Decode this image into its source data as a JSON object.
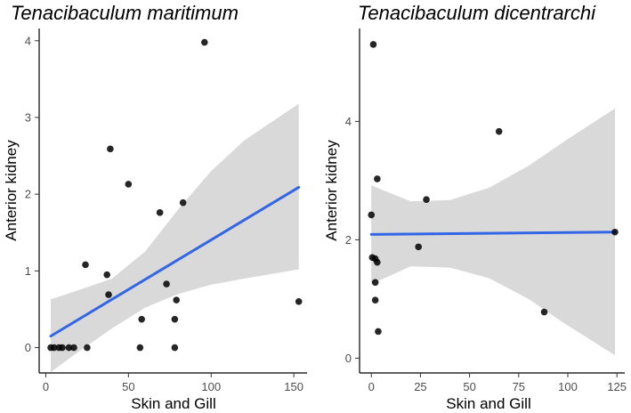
{
  "chart_data": [
    {
      "type": "scatter",
      "title": "Tenacibaculum maritimum",
      "xlabel": "Skin and Gill",
      "ylabel": "Anterior kidney",
      "xlim": [
        -4,
        158
      ],
      "ylim": [
        -0.33,
        4.16
      ],
      "xticks": [
        0,
        50,
        100,
        150
      ],
      "yticks": [
        0,
        1,
        2,
        3,
        4
      ],
      "grid": false,
      "point_color": "#000000",
      "line_color": "#3366e6",
      "band_color": "#d9d9d9",
      "points": [
        {
          "x": 96,
          "y": 3.98
        },
        {
          "x": 39,
          "y": 2.59
        },
        {
          "x": 50,
          "y": 2.13
        },
        {
          "x": 83,
          "y": 1.89
        },
        {
          "x": 69,
          "y": 1.76
        },
        {
          "x": 24,
          "y": 1.08
        },
        {
          "x": 37,
          "y": 0.95
        },
        {
          "x": 73,
          "y": 0.83
        },
        {
          "x": 38,
          "y": 0.69
        },
        {
          "x": 79,
          "y": 0.62
        },
        {
          "x": 153,
          "y": 0.6
        },
        {
          "x": 58,
          "y": 0.37
        },
        {
          "x": 78,
          "y": 0.37
        },
        {
          "x": 3,
          "y": 0.0
        },
        {
          "x": 5,
          "y": 0.0
        },
        {
          "x": 8,
          "y": 0.0
        },
        {
          "x": 10,
          "y": 0.0
        },
        {
          "x": 14,
          "y": 0.0
        },
        {
          "x": 17,
          "y": 0.0
        },
        {
          "x": 25,
          "y": 0.0
        },
        {
          "x": 57,
          "y": 0.0
        },
        {
          "x": 78,
          "y": 0.0
        }
      ],
      "fit_line": {
        "x": [
          3,
          153
        ],
        "y": [
          0.15,
          2.09
        ]
      },
      "confidence_band": {
        "x": [
          3,
          20,
          40,
          60,
          80,
          100,
          120,
          153
        ],
        "lower": [
          -0.32,
          -0.05,
          0.25,
          0.52,
          0.7,
          0.82,
          0.9,
          1.02
        ],
        "upper": [
          0.63,
          0.75,
          0.9,
          1.25,
          1.8,
          2.3,
          2.7,
          3.18
        ]
      }
    },
    {
      "type": "scatter",
      "title": "Tenacibaculum dicentrarchi",
      "xlabel": "Skin and Gill",
      "ylabel": "Anterior kidney",
      "xlim": [
        -6,
        129
      ],
      "ylim": [
        -0.25,
        5.57
      ],
      "xticks": [
        0,
        25,
        50,
        75,
        100,
        125
      ],
      "yticks": [
        0,
        2,
        4
      ],
      "grid": false,
      "point_color": "#000000",
      "line_color": "#3366e6",
      "band_color": "#d9d9d9",
      "points": [
        {
          "x": 1,
          "y": 5.3
        },
        {
          "x": 65,
          "y": 3.83
        },
        {
          "x": 3,
          "y": 3.03
        },
        {
          "x": 28,
          "y": 2.68
        },
        {
          "x": 0,
          "y": 2.42
        },
        {
          "x": 124,
          "y": 2.13
        },
        {
          "x": 24,
          "y": 1.88
        },
        {
          "x": 0.5,
          "y": 1.7
        },
        {
          "x": 2,
          "y": 1.68
        },
        {
          "x": 3,
          "y": 1.62
        },
        {
          "x": 2,
          "y": 1.28
        },
        {
          "x": 2,
          "y": 0.98
        },
        {
          "x": 88,
          "y": 0.78
        },
        {
          "x": 3.5,
          "y": 0.45
        }
      ],
      "fit_line": {
        "x": [
          0,
          124
        ],
        "y": [
          2.09,
          2.13
        ]
      },
      "confidence_band": {
        "x": [
          0,
          20,
          40,
          60,
          80,
          100,
          124
        ],
        "lower": [
          1.25,
          1.55,
          1.53,
          1.35,
          1.0,
          0.55,
          0.05
        ],
        "upper": [
          2.92,
          2.65,
          2.67,
          2.88,
          3.25,
          3.7,
          4.22
        ]
      }
    }
  ]
}
